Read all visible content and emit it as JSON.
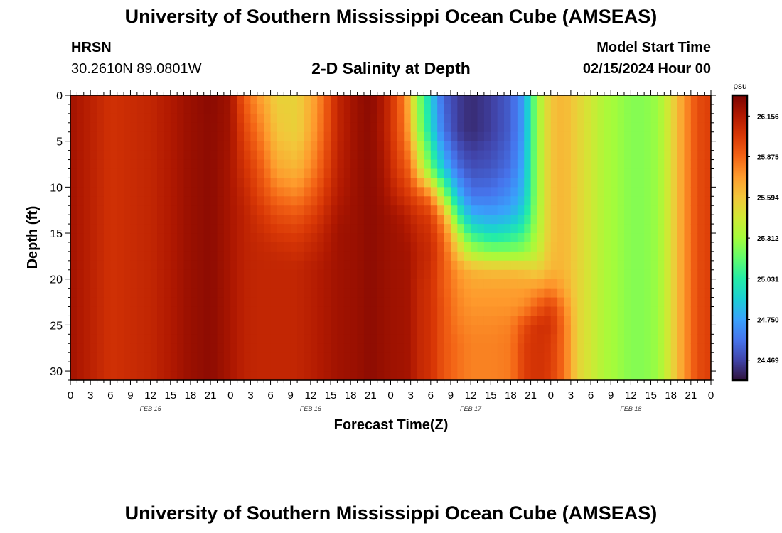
{
  "header": {
    "title": "University of Southern Mississippi Ocean Cube (AMSEAS)",
    "station_name": "HRSN",
    "station_coords": "30.2610N  89.0801W",
    "plot_title": "2-D Salinity at Depth",
    "start_label": "Model Start Time",
    "start_value": "02/15/2024 Hour 00"
  },
  "footer": {
    "title": "University of Southern Mississippi Ocean Cube (AMSEAS)"
  },
  "chart_data": {
    "type": "heatmap",
    "title": "2-D Salinity at Depth",
    "xlabel": "Forecast Time(Z)",
    "ylabel": "Depth (ft)",
    "x_ticks": [
      "0",
      "3",
      "6",
      "9",
      "12",
      "15",
      "18",
      "21",
      "0",
      "3",
      "6",
      "9",
      "12",
      "15",
      "18",
      "21",
      "0",
      "3",
      "6",
      "9",
      "12",
      "15",
      "18",
      "21",
      "0",
      "3",
      "6",
      "9",
      "12",
      "15",
      "18",
      "21",
      "0"
    ],
    "x_range_hours": [
      0,
      96
    ],
    "date_labels": [
      {
        "label": "FEB 15",
        "hour": 12
      },
      {
        "label": "FEB 16",
        "hour": 36
      },
      {
        "label": "FEB 17",
        "hour": 60
      },
      {
        "label": "FEB 18",
        "hour": 84
      }
    ],
    "y_ticks": [
      0,
      5,
      10,
      15,
      20,
      25,
      30
    ],
    "y_range": [
      0,
      31
    ],
    "y_inverted": true,
    "colorbar": {
      "unit": "psu",
      "range": [
        24.33,
        26.3
      ],
      "ticks": [
        "26.156",
        "25.875",
        "25.594",
        "25.312",
        "25.031",
        "24.750",
        "24.469"
      ],
      "colormap": [
        "#30123b",
        "#4145ab",
        "#4675ed",
        "#39a2fc",
        "#1bcfd4",
        "#24eca6",
        "#61fc6c",
        "#a4fc3b",
        "#d1e834",
        "#f3c63a",
        "#fe9b2d",
        "#f36315",
        "#d93806",
        "#b11901",
        "#7a0402"
      ]
    },
    "time_hours": [
      0,
      6,
      12,
      18,
      21,
      24,
      26,
      28,
      31,
      34,
      37,
      40,
      43,
      45,
      47,
      49,
      50,
      51,
      52,
      54,
      56,
      58,
      60,
      63,
      66,
      68,
      70,
      72,
      74,
      76,
      78,
      80,
      82,
      84,
      86,
      88,
      90,
      92,
      94,
      96
    ],
    "depths_ft": [
      0,
      4,
      8,
      11,
      13,
      15,
      17,
      19,
      21,
      23,
      25,
      27,
      31
    ],
    "salinity_psu": [
      [
        26.2,
        26.05,
        26.1,
        26.22,
        26.26,
        26.2,
        25.9,
        25.75,
        25.55,
        25.55,
        25.75,
        26.1,
        26.22,
        26.26,
        26.15,
        25.95,
        25.8,
        25.6,
        25.3,
        24.9,
        24.55,
        24.45,
        24.4,
        24.45,
        24.55,
        24.75,
        25.3,
        25.6,
        25.65,
        25.55,
        25.45,
        25.35,
        25.3,
        25.25,
        25.25,
        25.3,
        25.5,
        25.75,
        25.95,
        26.0
      ],
      [
        26.2,
        26.05,
        26.1,
        26.22,
        26.25,
        26.2,
        25.98,
        25.85,
        25.6,
        25.55,
        25.78,
        26.1,
        26.22,
        26.25,
        26.15,
        25.95,
        25.85,
        25.65,
        25.35,
        24.95,
        24.6,
        24.45,
        24.4,
        24.45,
        24.55,
        24.75,
        25.3,
        25.6,
        25.65,
        25.55,
        25.45,
        25.35,
        25.3,
        25.25,
        25.25,
        25.3,
        25.5,
        25.75,
        25.95,
        26.0
      ],
      [
        26.2,
        26.05,
        26.1,
        26.22,
        26.25,
        26.18,
        26.05,
        25.95,
        25.7,
        25.65,
        25.85,
        26.12,
        26.22,
        26.25,
        26.18,
        26.0,
        25.95,
        25.85,
        25.6,
        25.2,
        24.85,
        24.6,
        24.5,
        24.52,
        24.6,
        24.8,
        25.3,
        25.6,
        25.65,
        25.55,
        25.45,
        25.35,
        25.3,
        25.25,
        25.25,
        25.3,
        25.5,
        25.75,
        25.95,
        26.0
      ],
      [
        26.2,
        26.05,
        26.1,
        26.22,
        26.25,
        26.18,
        26.1,
        26.0,
        25.85,
        25.8,
        25.95,
        26.15,
        26.22,
        26.25,
        26.2,
        26.1,
        26.05,
        26.0,
        25.95,
        25.8,
        25.3,
        24.85,
        24.62,
        24.62,
        24.7,
        24.85,
        25.3,
        25.6,
        25.65,
        25.55,
        25.45,
        25.35,
        25.3,
        25.25,
        25.25,
        25.3,
        25.5,
        25.75,
        25.95,
        26.0
      ],
      [
        26.2,
        26.05,
        26.1,
        26.22,
        26.25,
        26.18,
        26.12,
        26.05,
        25.95,
        25.92,
        26.02,
        26.18,
        26.22,
        26.25,
        26.22,
        26.18,
        26.15,
        26.1,
        26.05,
        26.0,
        25.7,
        25.1,
        24.8,
        24.75,
        24.8,
        24.95,
        25.32,
        25.6,
        25.65,
        25.55,
        25.45,
        25.35,
        25.3,
        25.25,
        25.25,
        25.3,
        25.5,
        25.75,
        25.95,
        26.0
      ],
      [
        26.2,
        26.05,
        26.1,
        26.22,
        26.25,
        26.18,
        26.12,
        26.08,
        26.02,
        26.0,
        26.08,
        26.2,
        26.22,
        26.25,
        26.22,
        26.2,
        26.18,
        26.15,
        26.1,
        26.05,
        25.85,
        25.4,
        25.05,
        24.95,
        25.0,
        25.1,
        25.35,
        25.6,
        25.65,
        25.55,
        25.45,
        25.35,
        25.3,
        25.25,
        25.25,
        25.3,
        25.5,
        25.75,
        25.95,
        26.0
      ],
      [
        26.2,
        26.05,
        26.1,
        26.22,
        26.25,
        26.18,
        26.12,
        26.1,
        26.08,
        26.06,
        26.12,
        26.2,
        26.22,
        26.25,
        26.22,
        26.2,
        26.2,
        26.18,
        26.12,
        26.08,
        25.9,
        25.6,
        25.35,
        25.25,
        25.25,
        25.28,
        25.4,
        25.62,
        25.65,
        25.55,
        25.45,
        25.35,
        25.3,
        25.25,
        25.25,
        25.3,
        25.5,
        25.75,
        25.95,
        26.0
      ],
      [
        26.2,
        26.05,
        26.1,
        26.22,
        26.25,
        26.18,
        26.12,
        26.1,
        26.1,
        26.1,
        26.15,
        26.2,
        26.22,
        26.25,
        26.22,
        26.2,
        26.2,
        26.18,
        26.12,
        26.06,
        25.9,
        25.75,
        25.65,
        25.62,
        25.62,
        25.6,
        25.55,
        25.65,
        25.65,
        25.55,
        25.45,
        25.35,
        25.3,
        25.25,
        25.25,
        25.3,
        25.5,
        25.75,
        25.95,
        26.0
      ],
      [
        26.2,
        26.05,
        26.1,
        26.22,
        26.25,
        26.18,
        26.12,
        26.1,
        26.1,
        26.1,
        26.15,
        26.2,
        26.22,
        26.25,
        26.22,
        26.2,
        26.2,
        26.18,
        26.1,
        26.05,
        25.9,
        25.78,
        25.72,
        25.72,
        25.72,
        25.72,
        25.75,
        25.8,
        25.7,
        25.55,
        25.45,
        25.35,
        25.3,
        25.25,
        25.25,
        25.3,
        25.5,
        25.75,
        25.95,
        26.0
      ],
      [
        26.2,
        26.05,
        26.1,
        26.22,
        26.25,
        26.18,
        26.12,
        26.1,
        26.1,
        26.1,
        26.15,
        26.2,
        26.22,
        26.25,
        26.22,
        26.2,
        26.2,
        26.18,
        26.1,
        26.05,
        25.92,
        25.8,
        25.75,
        25.75,
        25.75,
        25.78,
        25.9,
        26.0,
        25.8,
        25.55,
        25.45,
        25.35,
        25.3,
        25.25,
        25.25,
        25.3,
        25.5,
        25.75,
        25.95,
        26.0
      ],
      [
        26.2,
        26.05,
        26.1,
        26.22,
        26.25,
        26.18,
        26.12,
        26.1,
        26.1,
        26.1,
        26.15,
        26.2,
        26.22,
        26.25,
        26.22,
        26.2,
        26.2,
        26.18,
        26.1,
        26.05,
        25.92,
        25.82,
        25.78,
        25.78,
        25.8,
        25.95,
        26.05,
        26.05,
        25.85,
        25.55,
        25.45,
        25.35,
        25.3,
        25.25,
        25.25,
        25.3,
        25.5,
        25.75,
        25.95,
        26.0
      ],
      [
        26.2,
        26.05,
        26.1,
        26.22,
        26.25,
        26.18,
        26.12,
        26.1,
        26.1,
        26.1,
        26.15,
        26.2,
        26.22,
        26.25,
        26.22,
        26.2,
        26.2,
        26.18,
        26.1,
        26.05,
        25.92,
        25.85,
        25.8,
        25.8,
        25.82,
        26.0,
        26.05,
        26.02,
        25.85,
        25.55,
        25.45,
        25.35,
        25.3,
        25.25,
        25.25,
        25.3,
        25.5,
        25.75,
        25.95,
        26.0
      ],
      [
        26.2,
        26.05,
        26.1,
        26.22,
        26.25,
        26.18,
        26.12,
        26.1,
        26.1,
        26.1,
        26.15,
        26.2,
        26.22,
        26.25,
        26.22,
        26.2,
        26.2,
        26.18,
        26.1,
        26.05,
        25.92,
        25.85,
        25.8,
        25.8,
        25.82,
        26.0,
        26.05,
        26.0,
        25.85,
        25.55,
        25.45,
        25.35,
        25.3,
        25.25,
        25.25,
        25.3,
        25.5,
        25.75,
        25.95,
        26.0
      ]
    ]
  }
}
